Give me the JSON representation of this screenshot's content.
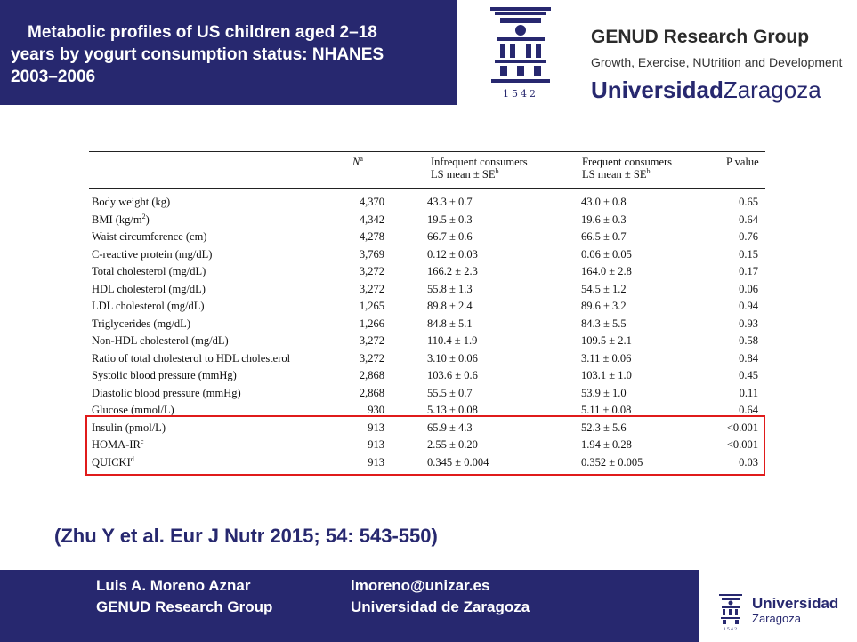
{
  "header": {
    "title_lines": [
      "Metabolic profiles of US children aged 2–18",
      "years by yogurt consumption status: NHANES",
      "2003–2006"
    ],
    "seal_year": "1542",
    "group_name": "GENUD Research Group",
    "group_tagline": "Growth, Exercise, NUtrition and Development",
    "university_bold": "Universidad",
    "university_light": "Zaragoza"
  },
  "table": {
    "headers": {
      "n": "N",
      "n_sup": "a",
      "infrequent_line1": "Infrequent consumers",
      "infrequent_line2": "LS mean ± SE",
      "infrequent_sup": "b",
      "frequent_line1": "Frequent consumers",
      "frequent_line2": "LS mean ± SE",
      "frequent_sup": "b",
      "p": "P value"
    },
    "rows": [
      {
        "label": "Body weight (kg)",
        "sup": "",
        "n": "4,370",
        "infrequent": "43.3 ± 0.7",
        "frequent": "43.0 ± 0.8",
        "p": "0.65"
      },
      {
        "label": "BMI (kg/m",
        "sup": "2",
        "label_end": ")",
        "n": "4,342",
        "infrequent": "19.5 ± 0.3",
        "frequent": "19.6 ± 0.3",
        "p": "0.64"
      },
      {
        "label": "Waist circumference (cm)",
        "sup": "",
        "n": "4,278",
        "infrequent": "66.7 ± 0.6",
        "frequent": "66.5 ± 0.7",
        "p": "0.76"
      },
      {
        "label": "C-reactive protein (mg/dL)",
        "sup": "",
        "n": "3,769",
        "infrequent": "0.12 ± 0.03",
        "frequent": "0.06 ± 0.05",
        "p": "0.15"
      },
      {
        "label": "Total cholesterol (mg/dL)",
        "sup": "",
        "n": "3,272",
        "infrequent": "166.2 ± 2.3",
        "frequent": "164.0 ± 2.8",
        "p": "0.17"
      },
      {
        "label": "HDL cholesterol (mg/dL)",
        "sup": "",
        "n": "3,272",
        "infrequent": "55.8 ± 1.3",
        "frequent": "54.5 ± 1.2",
        "p": "0.06"
      },
      {
        "label": "LDL cholesterol (mg/dL)",
        "sup": "",
        "n": "1,265",
        "infrequent": "89.8 ± 2.4",
        "frequent": "89.6 ± 3.2",
        "p": "0.94"
      },
      {
        "label": "Triglycerides (mg/dL)",
        "sup": "",
        "n": "1,266",
        "infrequent": "84.8 ± 5.1",
        "frequent": "84.3 ± 5.5",
        "p": "0.93"
      },
      {
        "label": "Non-HDL cholesterol (mg/dL)",
        "sup": "",
        "n": "3,272",
        "infrequent": "110.4 ± 1.9",
        "frequent": "109.5 ± 2.1",
        "p": "0.58"
      },
      {
        "label": "Ratio of total cholesterol to HDL cholesterol",
        "sup": "",
        "n": "3,272",
        "infrequent": "3.10 ± 0.06",
        "frequent": "3.11 ± 0.06",
        "p": "0.84"
      },
      {
        "label": "Systolic blood pressure (mmHg)",
        "sup": "",
        "n": "2,868",
        "infrequent": "103.6 ± 0.6",
        "frequent": "103.1 ± 1.0",
        "p": "0.45"
      },
      {
        "label": "Diastolic blood pressure (mmHg)",
        "sup": "",
        "n": "2,868",
        "infrequent": "55.5 ± 0.7",
        "frequent": "53.9 ± 1.0",
        "p": "0.11"
      },
      {
        "label": "Glucose (mmol/L)",
        "sup": "",
        "n": "930",
        "infrequent": "5.13 ± 0.08",
        "frequent": "5.11 ± 0.08",
        "p": "0.64"
      },
      {
        "label": "Insulin (pmol/L)",
        "sup": "",
        "n": "913",
        "infrequent": "65.9 ± 4.3",
        "frequent": "52.3 ± 5.6",
        "p": "<0.001"
      },
      {
        "label": "HOMA-IR",
        "sup": "c",
        "n": "913",
        "infrequent": "2.55 ± 0.20",
        "frequent": "1.94 ± 0.28",
        "p": "<0.001"
      },
      {
        "label": "QUICKI",
        "sup": "d",
        "n": "913",
        "infrequent": "0.345 ± 0.004",
        "frequent": "0.352 ± 0.005",
        "p": "0.03"
      }
    ]
  },
  "citation": "(Zhu Y et al. Eur J Nutr 2015; 54: 543-550)",
  "footer": {
    "name": "Luis A. Moreno Aznar",
    "group": "GENUD Research Group",
    "email": "lmoreno@unizar.es",
    "university": "Universidad de Zaragoza",
    "logo_bold": "Universidad",
    "logo_light": "Zaragoza",
    "logo_year": "1542"
  },
  "colors": {
    "brand_navy": "#27286f",
    "highlight_red": "#e01b1b"
  }
}
